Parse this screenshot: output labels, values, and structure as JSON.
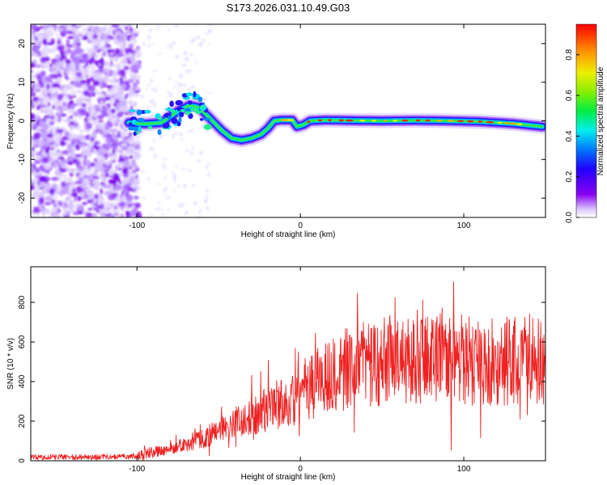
{
  "title": "S173.2026.031.10.49.G03",
  "colors": {
    "snr_line": "#ee2222",
    "axes": "#000000"
  },
  "chart_data": [
    {
      "type": "heatmap",
      "xlabel": "Height of straight line (km)",
      "ylabel": "Frequency (Hz)",
      "xlim": [
        -165,
        150
      ],
      "ylim": [
        -25,
        25
      ],
      "xticks": [
        -100,
        0,
        100
      ],
      "yticks": [
        -20,
        -10,
        0,
        10,
        20
      ],
      "colorbar": {
        "label": "Normalized spectral amplitude",
        "range": [
          0,
          0.95
        ],
        "ticks": [
          0,
          0.2,
          0.4,
          0.6,
          0.8
        ],
        "colormap": "rainbow-purple-to-red"
      },
      "signal_ridge": {
        "description": "frequency of peak amplitude vs height",
        "x": [
          -105,
          -95,
          -85,
          -75,
          -68,
          -62,
          -55,
          -48,
          -42,
          -36,
          -30,
          -24,
          -20,
          -16,
          -12,
          -8,
          -5,
          -2,
          2,
          6,
          15,
          30,
          50,
          70,
          90,
          110,
          130,
          148
        ],
        "y": [
          -0.5,
          -0.8,
          -0.5,
          2.5,
          4.0,
          3.5,
          0.5,
          -2.5,
          -4.5,
          -5.0,
          -4.5,
          -3.5,
          -2.0,
          0.0,
          0.2,
          0.2,
          0.2,
          -1.5,
          -1.0,
          0.0,
          0.2,
          0.1,
          0.0,
          0.1,
          0.0,
          -0.2,
          -0.7,
          -1.5
        ]
      },
      "noise_region_xmax": -105
    },
    {
      "type": "line",
      "xlabel": "Height of straight line (km)",
      "ylabel": "SNR (10 * v/v)",
      "xlim": [
        -165,
        150
      ],
      "ylim": [
        0,
        980
      ],
      "xticks": [
        -100,
        0,
        100
      ],
      "yticks": [
        0,
        200,
        400,
        600,
        800
      ],
      "series": [
        {
          "name": "SNR",
          "trend_x": [
            -165,
            -120,
            -100,
            -90,
            -80,
            -70,
            -60,
            -50,
            -40,
            -30,
            -20,
            -10,
            0,
            10,
            20,
            30,
            40,
            60,
            80,
            100,
            120,
            140,
            150
          ],
          "trend_y": [
            18,
            18,
            25,
            45,
            60,
            85,
            110,
            150,
            190,
            230,
            260,
            300,
            340,
            400,
            440,
            470,
            490,
            500,
            505,
            510,
            505,
            500,
            495
          ]
        }
      ]
    }
  ]
}
